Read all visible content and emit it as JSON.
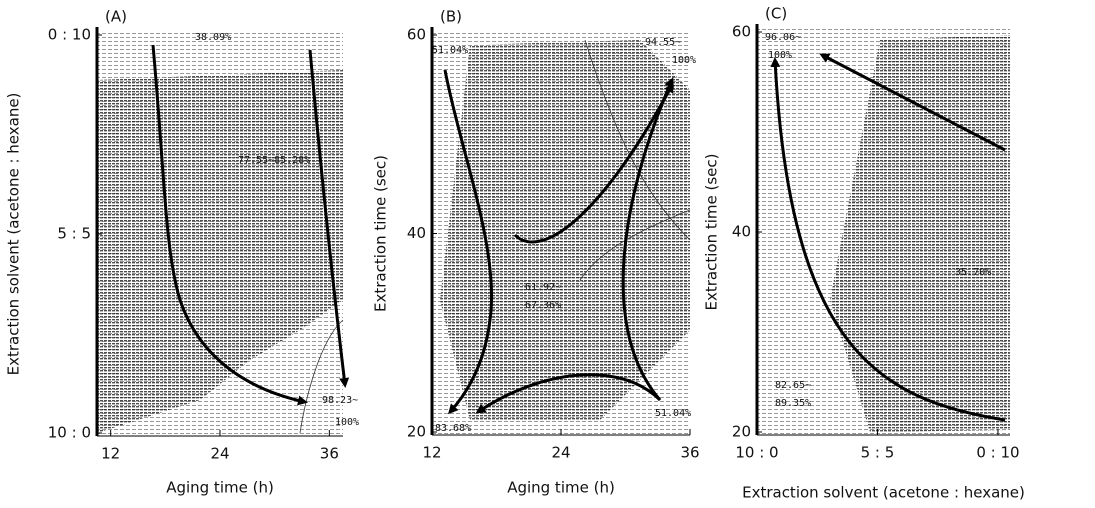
{
  "chart_data": [
    {
      "type": "contour",
      "label": "(A)",
      "x_label": "Aging time (h)",
      "y_label": "Extraction solvent (acetone : hexane)",
      "xlim": [
        10.5,
        37.5
      ],
      "xticks": [
        12,
        24,
        36
      ],
      "ylim": [
        0,
        10
      ],
      "yticks": [
        {
          "value": 10,
          "label": "0 : 10"
        },
        {
          "value": 5,
          "label": "5 : 5"
        },
        {
          "value": 0,
          "label": "10 : 0"
        }
      ],
      "annotations": [
        "38.09%",
        "77.55~85.28%",
        "98.23~",
        "100%"
      ]
    },
    {
      "type": "contour",
      "label": "(B)",
      "x_label": "Aging time (h)",
      "y_label": "Extraction time (sec)",
      "xlim": [
        12,
        36
      ],
      "xticks": [
        12,
        24,
        36
      ],
      "ylim": [
        20,
        60
      ],
      "yticks": [
        20,
        40,
        60
      ],
      "annotations": [
        "51.04%",
        "94.55~",
        "100%",
        "61.92~",
        "67.36%",
        "83.68%",
        "51.04%"
      ]
    },
    {
      "type": "contour",
      "label": "(C)",
      "x_label": "Extraction solvent (acetone : hexane)",
      "y_label": "Extraction time (sec)",
      "xlim": [
        0,
        10.5
      ],
      "xticks": [
        {
          "value": 0,
          "label": "10 : 0"
        },
        {
          "value": 5,
          "label": "5 : 5"
        },
        {
          "value": 10,
          "label": "0 : 10"
        }
      ],
      "ylim": [
        20,
        60
      ],
      "yticks": [
        20,
        40,
        60
      ],
      "annotations": [
        "96.06~",
        "100%",
        "35.70%",
        "82.65~",
        "89.35%"
      ]
    }
  ]
}
